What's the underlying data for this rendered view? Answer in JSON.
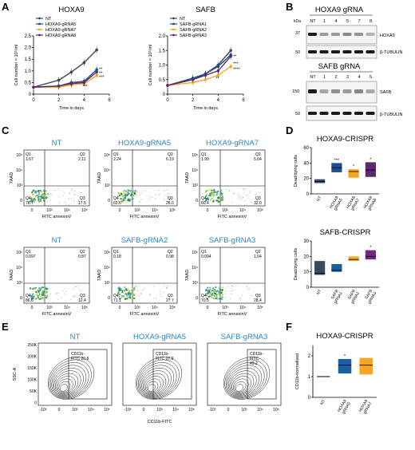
{
  "panels": {
    "A": "A",
    "B": "B",
    "C": "C",
    "D": "D",
    "E": "E",
    "F": "F"
  },
  "colors": {
    "nt": "#3a4a5a",
    "g1": "#1f4e8c",
    "g2": "#f5a623",
    "g3": "#5b2a6e",
    "gr2": "#1a5fa0",
    "gr3": "#f5a623",
    "gr4": "#6e2a7e"
  },
  "chart_data": [
    {
      "type": "line",
      "panel": "A",
      "title": "HOXA9",
      "xlabel": "Time in days",
      "ylabel": "Cell number × 10⁵/ml",
      "xlim": [
        0,
        6
      ],
      "ylim": [
        0,
        2.5
      ],
      "xticks": [
        "0",
        "2",
        "4",
        "6"
      ],
      "yticks": [
        "0",
        "0.5",
        "1.0",
        "1.5",
        "2.0",
        "2.5"
      ],
      "x": [
        0,
        2,
        3,
        4,
        5
      ],
      "series": [
        {
          "name": "NT",
          "values": [
            0.3,
            0.6,
            0.95,
            1.35,
            1.9
          ]
        },
        {
          "name": "HOXA9-gRNA5",
          "values": [
            0.3,
            0.35,
            0.5,
            0.55,
            1.05
          ]
        },
        {
          "name": "HOXA9-gRNA7",
          "values": [
            0.3,
            0.3,
            0.4,
            0.45,
            0.8
          ]
        },
        {
          "name": "HOXA9-gRNA8",
          "values": [
            0.3,
            0.35,
            0.45,
            0.5,
            0.95
          ]
        }
      ],
      "annotations": [
        "**",
        "**",
        "***",
        "***"
      ]
    },
    {
      "type": "line",
      "panel": "A2",
      "title": "SAFB",
      "xlabel": "Time in days",
      "ylabel": "Cell number × 10⁵/ml",
      "xlim": [
        0,
        6
      ],
      "ylim": [
        0,
        2.0
      ],
      "xticks": [
        "0",
        "2",
        "4",
        "6"
      ],
      "yticks": [
        "0",
        "0.5",
        "1.0",
        "1.5",
        "2.0"
      ],
      "x": [
        0,
        2,
        3,
        4,
        5
      ],
      "series": [
        {
          "name": "NT",
          "values": [
            0.3,
            0.5,
            0.7,
            1.0,
            1.5
          ]
        },
        {
          "name": "SAFB-gRNA1",
          "values": [
            0.3,
            0.55,
            0.7,
            0.95,
            1.35
          ]
        },
        {
          "name": "SAFB-gRNA2",
          "values": [
            0.3,
            0.4,
            0.5,
            0.65,
            0.95
          ]
        },
        {
          "name": "SAFB-gRNA3",
          "values": [
            0.3,
            0.5,
            0.65,
            0.8,
            1.3
          ]
        }
      ],
      "annotations": [
        "**",
        "***",
        "****",
        "**"
      ]
    },
    {
      "type": "box",
      "panel": "D1",
      "title": "HOXA9-CRISPR",
      "ylabel": "Dead/dying cells",
      "categories": [
        "NT",
        "HOXA9 gRNA5",
        "HOXA9 gRNA7",
        "HOXA9 gRNA8"
      ],
      "ylim": [
        0,
        60
      ],
      "yticks": [
        "0",
        "20",
        "40",
        "60"
      ],
      "boxes": [
        {
          "q1": 14,
          "med": 16,
          "q3": 19
        },
        {
          "q1": 28,
          "med": 34,
          "q3": 40
        },
        {
          "q1": 21,
          "med": 29,
          "q3": 32
        },
        {
          "q1": 22,
          "med": 31,
          "q3": 41
        }
      ],
      "sig": [
        "",
        "***",
        "*",
        "*"
      ]
    },
    {
      "type": "box",
      "panel": "D2",
      "title": "SAFB-CRISPR",
      "ylabel": "Dead/dying cells",
      "categories": [
        "NT",
        "SAFB gRNA1",
        "SAFB gRNA2",
        "SAFB gRNA3"
      ],
      "ylim": [
        0,
        30
      ],
      "yticks": [
        "0",
        "10",
        "20",
        "30"
      ],
      "boxes": [
        {
          "q1": 8,
          "med": 9,
          "q3": 17
        },
        {
          "q1": 10,
          "med": 11,
          "q3": 15
        },
        {
          "q1": 17,
          "med": 18,
          "q3": 20
        },
        {
          "q1": 18,
          "med": 20,
          "q3": 24
        }
      ],
      "sig": [
        "",
        "",
        "",
        "*"
      ]
    },
    {
      "type": "box",
      "panel": "F",
      "title": "HOXA9-CRISPR",
      "ylabel": "CD11b-normalised",
      "categories": [
        "NT",
        "HOXA9 gRNA5",
        "HOXA9 gRNA7"
      ],
      "ylim": [
        0,
        2.5
      ],
      "yticks": [
        "0",
        "1",
        "2"
      ],
      "boxes": [
        {
          "q1": 1.0,
          "med": 1.0,
          "q3": 1.0
        },
        {
          "q1": 1.15,
          "med": 1.55,
          "q3": 1.85
        },
        {
          "q1": 1.1,
          "med": 1.55,
          "q3": 1.9
        }
      ],
      "sig": [
        "",
        "*",
        ""
      ]
    }
  ],
  "westerns": {
    "hoxa9": {
      "title": "HOXA9 gRNA",
      "lanes": [
        "NT",
        "1",
        "4",
        "5",
        "7",
        "8"
      ],
      "kda_label": "kDa",
      "mw": [
        "37",
        "50"
      ],
      "targets": [
        "HOXA9",
        "β-TUBULIN"
      ]
    },
    "safb": {
      "title": "SAFB gRNA",
      "lanes": [
        "NT",
        "1",
        "2",
        "3",
        "4",
        "5"
      ],
      "mw": [
        "150",
        "50"
      ],
      "targets": [
        "SAFB",
        "β-TUBULIN"
      ]
    }
  },
  "facs": {
    "xlabel": "FITC annexinV",
    "ylabel": "7AAD",
    "xticks": [
      "0",
      "10³",
      "10⁴",
      "10⁵"
    ],
    "yticks": [
      "10⁵",
      "10⁴",
      "10³",
      "0"
    ],
    "row1": [
      {
        "title": "NT",
        "q1": "1.67",
        "q2": "2.11",
        "q3": "17.5",
        "q4": "78.7"
      },
      {
        "title": "HOXA9-gRNA5",
        "q1": "2.24",
        "q2": "6.19",
        "q3": "26.0",
        "q4": "65.6"
      },
      {
        "title": "HOXA9-gRNA7",
        "q1": "1.99",
        "q2": "5.64",
        "q3": "32.0",
        "q4": "60.4"
      }
    ],
    "row2": [
      {
        "title": "NT",
        "q1": "0.097",
        "q2": "0.87",
        "q3": "12.4",
        "q4": "86.6"
      },
      {
        "title": "SAFB-gRNA2",
        "q1": "0.18",
        "q2": "0.98",
        "q3": "27.7",
        "q4": "71.1"
      },
      {
        "title": "SAFB-gRNA3",
        "q1": "0.094",
        "q2": "1.04",
        "q3": "28.4",
        "q4": "70.5"
      }
    ]
  },
  "cd11b": {
    "xlabel": "CD11b-FITC",
    "ylabel": "SSC-A",
    "yticks": [
      "250K",
      "200K",
      "150K",
      "100K",
      "50K",
      "0"
    ],
    "xticks": [
      "-10³",
      "0",
      "10³",
      "10⁴",
      "10⁵"
    ],
    "plots": [
      {
        "title": "NT",
        "gate": "CD11b-\nFITC 20.8",
        "gate1": "CD11b-",
        "gate2": "FITC 20.8"
      },
      {
        "title": "HOXA9-gRNA5",
        "gate1": "CD11b-",
        "gate2": "FITC 27.9"
      },
      {
        "title": "SAFB-gRNA3",
        "gate1": "CD11b-",
        "gate2": "FITC",
        "gate3": "49.2"
      }
    ]
  },
  "stat_labels": {
    "q1": "Q1",
    "q2": "Q2",
    "q3": "Q3",
    "q4": "Q4"
  }
}
